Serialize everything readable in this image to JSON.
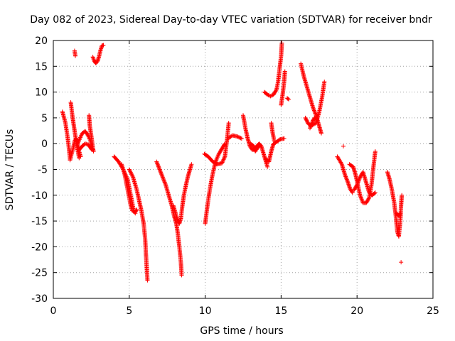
{
  "chart_data": {
    "type": "scatter",
    "title": "Day 082 of 2023, Sidereal Day-to-day VTEC variation (SDTVAR) for receiver bndr",
    "xlabel": "GPS time / hours",
    "ylabel": "SDTVAR / TECUs",
    "xlim": [
      0,
      25
    ],
    "ylim": [
      -30,
      20
    ],
    "xticks": [
      "0",
      "5",
      "10",
      "15",
      "20",
      "25"
    ],
    "yticks": [
      "-30",
      "-25",
      "-20",
      "-15",
      "-10",
      "-5",
      "0",
      "5",
      "10",
      "15",
      "20"
    ],
    "grid": true,
    "legend": "none",
    "marker": "+",
    "color": "#ff0000",
    "segments": [
      [
        [
          0.6,
          6.2
        ],
        [
          0.8,
          4.0
        ],
        [
          0.95,
          1.0
        ],
        [
          1.05,
          -1.5
        ],
        [
          1.1,
          -3.0
        ]
      ],
      [
        [
          1.1,
          -3.2
        ],
        [
          1.2,
          -2.0
        ],
        [
          1.3,
          -1.0
        ],
        [
          1.4,
          0.5
        ],
        [
          1.5,
          1.0
        ],
        [
          1.6,
          0.2
        ],
        [
          1.7,
          -1.5
        ],
        [
          1.8,
          -2.5
        ]
      ],
      [
        [
          1.15,
          8.0
        ],
        [
          1.25,
          5.5
        ],
        [
          1.35,
          3.5
        ],
        [
          1.45,
          1.5
        ],
        [
          1.55,
          -0.5
        ],
        [
          1.65,
          -2.0
        ],
        [
          1.7,
          -2.8
        ]
      ],
      [
        [
          1.4,
          18.0
        ],
        [
          1.45,
          17.0
        ]
      ],
      [
        [
          1.6,
          0.0
        ],
        [
          1.75,
          1.0
        ],
        [
          1.9,
          2.0
        ],
        [
          2.1,
          2.4
        ],
        [
          2.2,
          2.0
        ],
        [
          2.3,
          1.5
        ],
        [
          2.45,
          0.5
        ],
        [
          2.55,
          -1.0
        ]
      ],
      [
        [
          1.7,
          -1.2
        ],
        [
          1.9,
          -0.5
        ],
        [
          2.1,
          0.0
        ],
        [
          2.3,
          -0.2
        ],
        [
          2.45,
          -0.8
        ],
        [
          2.55,
          -1.2
        ]
      ],
      [
        [
          2.35,
          5.5
        ],
        [
          2.4,
          3.5
        ],
        [
          2.45,
          2.5
        ],
        [
          2.5,
          1.5
        ],
        [
          2.55,
          0.5
        ],
        [
          2.6,
          -0.8
        ],
        [
          2.65,
          -1.5
        ]
      ],
      [
        [
          2.6,
          16.8
        ],
        [
          2.7,
          16.0
        ],
        [
          2.8,
          15.6
        ],
        [
          2.9,
          15.9
        ],
        [
          3.0,
          16.8
        ],
        [
          3.1,
          18.0
        ],
        [
          3.2,
          19.0
        ],
        [
          3.3,
          19.1
        ]
      ],
      [
        [
          4.0,
          -2.5
        ],
        [
          4.3,
          -3.5
        ],
        [
          4.6,
          -5.0
        ],
        [
          4.9,
          -7.0
        ],
        [
          5.0,
          -8.5
        ],
        [
          5.1,
          -10.0
        ],
        [
          5.2,
          -11.5
        ],
        [
          5.3,
          -13.0
        ],
        [
          5.4,
          -13.5
        ]
      ],
      [
        [
          4.5,
          -4.0
        ],
        [
          4.7,
          -6.0
        ],
        [
          4.8,
          -7.5
        ],
        [
          4.9,
          -9.0
        ],
        [
          5.0,
          -10.5
        ],
        [
          5.1,
          -12.0
        ],
        [
          5.2,
          -13.0
        ],
        [
          5.4,
          -13.2
        ],
        [
          5.5,
          -12.8
        ]
      ],
      [
        [
          5.0,
          -5.0
        ],
        [
          5.25,
          -6.5
        ],
        [
          5.5,
          -9.0
        ],
        [
          5.65,
          -11.0
        ],
        [
          5.8,
          -13.0
        ],
        [
          5.95,
          -15.5
        ],
        [
          6.05,
          -18.5
        ],
        [
          6.1,
          -21.5
        ],
        [
          6.15,
          -24.0
        ],
        [
          6.2,
          -26.5
        ]
      ],
      [
        [
          6.8,
          -3.5
        ],
        [
          7.0,
          -5.0
        ],
        [
          7.2,
          -6.5
        ],
        [
          7.4,
          -8.0
        ],
        [
          7.6,
          -10.0
        ],
        [
          7.8,
          -12.0
        ],
        [
          7.95,
          -14.0
        ],
        [
          8.1,
          -15.5
        ],
        [
          8.2,
          -17.5
        ],
        [
          8.3,
          -20.0
        ],
        [
          8.4,
          -23.0
        ],
        [
          8.45,
          -25.5
        ]
      ],
      [
        [
          7.9,
          -12.0
        ],
        [
          8.1,
          -14.0
        ],
        [
          8.2,
          -15.0
        ],
        [
          8.3,
          -15.5
        ],
        [
          8.4,
          -14.5
        ],
        [
          8.5,
          -12.0
        ],
        [
          8.6,
          -10.0
        ],
        [
          8.7,
          -8.5
        ],
        [
          8.85,
          -6.5
        ],
        [
          9.0,
          -5.0
        ],
        [
          9.1,
          -4.0
        ]
      ],
      [
        [
          10.0,
          -15.5
        ],
        [
          10.15,
          -12.0
        ],
        [
          10.3,
          -9.0
        ],
        [
          10.45,
          -6.5
        ],
        [
          10.6,
          -4.5
        ],
        [
          10.75,
          -3.0
        ],
        [
          10.9,
          -2.0
        ],
        [
          11.1,
          -1.0
        ],
        [
          11.3,
          0.0
        ]
      ],
      [
        [
          9.95,
          -2.0
        ],
        [
          10.2,
          -2.5
        ],
        [
          10.5,
          -3.5
        ],
        [
          10.8,
          -4.0
        ],
        [
          11.1,
          -3.8
        ],
        [
          11.3,
          -2.5
        ],
        [
          11.45,
          1.0
        ],
        [
          11.55,
          4.0
        ]
      ],
      [
        [
          11.5,
          1.0
        ],
        [
          11.8,
          1.6
        ],
        [
          12.1,
          1.4
        ],
        [
          12.4,
          1.0
        ]
      ],
      [
        [
          12.5,
          5.5
        ],
        [
          12.65,
          3.0
        ],
        [
          12.8,
          1.0
        ],
        [
          12.95,
          -0.5
        ],
        [
          13.1,
          -1.2
        ],
        [
          13.25,
          -1.0
        ],
        [
          13.4,
          -0.5
        ],
        [
          13.55,
          0.0
        ],
        [
          13.7,
          -0.5
        ],
        [
          13.9,
          -2.5
        ],
        [
          14.1,
          -4.5
        ]
      ],
      [
        [
          13.0,
          0.0
        ],
        [
          13.2,
          -0.5
        ],
        [
          13.3,
          -1.5
        ],
        [
          13.45,
          -0.8
        ],
        [
          13.6,
          -0.3
        ]
      ],
      [
        [
          13.9,
          10.0
        ],
        [
          14.1,
          9.5
        ],
        [
          14.3,
          9.2
        ],
        [
          14.5,
          9.5
        ],
        [
          14.7,
          10.5
        ],
        [
          14.8,
          12.0
        ],
        [
          14.9,
          14.5
        ],
        [
          15.0,
          17.0
        ],
        [
          15.05,
          19.5
        ]
      ],
      [
        [
          14.0,
          -3.0
        ],
        [
          14.2,
          -3.5
        ],
        [
          14.35,
          -1.5
        ],
        [
          14.5,
          0.0
        ],
        [
          14.7,
          0.3
        ],
        [
          14.9,
          0.8
        ],
        [
          15.2,
          1.0
        ]
      ],
      [
        [
          14.35,
          4.0
        ],
        [
          14.45,
          2.0
        ],
        [
          14.55,
          0.5
        ]
      ],
      [
        [
          15.0,
          7.5
        ],
        [
          15.1,
          9.5
        ],
        [
          15.2,
          12.0
        ],
        [
          15.25,
          14.0
        ]
      ],
      [
        [
          15.4,
          8.8
        ],
        [
          15.5,
          8.6
        ]
      ],
      [
        [
          16.3,
          15.5
        ],
        [
          16.5,
          13.0
        ],
        [
          16.7,
          11.0
        ],
        [
          16.9,
          9.0
        ],
        [
          17.1,
          7.0
        ],
        [
          17.3,
          5.5
        ],
        [
          17.5,
          3.5
        ],
        [
          17.65,
          2.0
        ]
      ],
      [
        [
          16.6,
          5.0
        ],
        [
          16.8,
          3.8
        ],
        [
          17.0,
          3.5
        ],
        [
          17.3,
          4.0
        ],
        [
          17.5,
          6.0
        ],
        [
          17.7,
          9.0
        ],
        [
          17.85,
          12.0
        ]
      ],
      [
        [
          16.9,
          3.0
        ],
        [
          17.1,
          4.5
        ],
        [
          17.2,
          5.0
        ],
        [
          17.35,
          4.8
        ]
      ],
      [
        [
          18.7,
          -2.5
        ],
        [
          19.0,
          -4.0
        ],
        [
          19.2,
          -6.0
        ],
        [
          19.4,
          -7.5
        ],
        [
          19.55,
          -8.8
        ],
        [
          19.7,
          -9.5
        ]
      ],
      [
        [
          19.1,
          -0.5
        ]
      ],
      [
        [
          19.5,
          -4.0
        ],
        [
          19.75,
          -4.5
        ],
        [
          19.9,
          -6.0
        ],
        [
          20.05,
          -8.0
        ],
        [
          20.2,
          -10.0
        ],
        [
          20.4,
          -11.5
        ],
        [
          20.6,
          -11.5
        ],
        [
          20.8,
          -10.5
        ],
        [
          20.95,
          -8.0
        ],
        [
          21.1,
          -4.0
        ],
        [
          21.2,
          -1.5
        ]
      ],
      [
        [
          19.8,
          -9.0
        ],
        [
          20.0,
          -8.0
        ],
        [
          20.2,
          -6.5
        ],
        [
          20.4,
          -5.5
        ],
        [
          20.6,
          -7.5
        ],
        [
          20.8,
          -9.5
        ],
        [
          21.0,
          -10.0
        ],
        [
          21.2,
          -9.5
        ]
      ],
      [
        [
          22.0,
          -5.5
        ],
        [
          22.15,
          -7.0
        ],
        [
          22.3,
          -9.0
        ],
        [
          22.45,
          -11.5
        ],
        [
          22.55,
          -14.0
        ],
        [
          22.65,
          -17.0
        ],
        [
          22.75,
          -18.0
        ],
        [
          22.85,
          -15.0
        ],
        [
          22.9,
          -12.0
        ],
        [
          22.95,
          -10.0
        ]
      ],
      [
        [
          22.6,
          -13.5
        ],
        [
          22.75,
          -14.0
        ],
        [
          22.85,
          -13.5
        ]
      ],
      [
        [
          22.9,
          -23.0
        ]
      ]
    ]
  }
}
